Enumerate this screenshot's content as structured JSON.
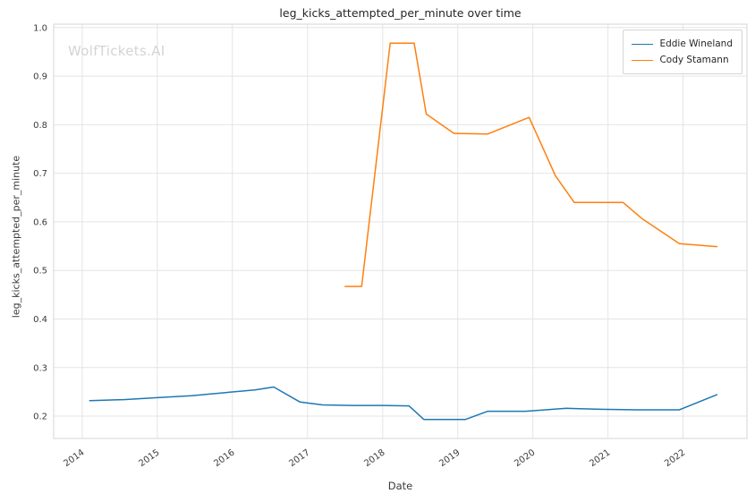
{
  "watermark": {
    "text": "WolfTickets.AI",
    "color": "#d4d4d4"
  },
  "chart_data": {
    "type": "line",
    "title": "leg_kicks_attempted_per_minute over time",
    "xlabel": "Date",
    "ylabel": "leg_kicks_attempted_per_minute",
    "grid": true,
    "legend_position": "upper right",
    "grid_color": "#e4e4e4",
    "spine_color": "#d5d5d5",
    "xlim": [
      2013.62,
      2022.85
    ],
    "ylim": [
      0.154,
      1.007
    ],
    "x_ticks": [
      2014,
      2015,
      2016,
      2017,
      2018,
      2019,
      2020,
      2021,
      2022
    ],
    "x_tick_labels": [
      "2014",
      "2015",
      "2016",
      "2017",
      "2018",
      "2019",
      "2020",
      "2021",
      "2022"
    ],
    "y_ticks": [
      0.2,
      0.3,
      0.4,
      0.5,
      0.6,
      0.7,
      0.8,
      0.9,
      1.0
    ],
    "y_tick_labels": [
      "0.2",
      "0.3",
      "0.4",
      "0.5",
      "0.6",
      "0.7",
      "0.8",
      "0.9",
      "1.0"
    ],
    "series": [
      {
        "name": "Eddie Wineland",
        "color": "#1f77b4",
        "points": [
          [
            2014.1,
            0.232
          ],
          [
            2014.55,
            0.234
          ],
          [
            2015.0,
            0.238
          ],
          [
            2015.45,
            0.242
          ],
          [
            2015.95,
            0.249
          ],
          [
            2016.3,
            0.254
          ],
          [
            2016.55,
            0.26
          ],
          [
            2016.9,
            0.229
          ],
          [
            2017.2,
            0.223
          ],
          [
            2017.6,
            0.222
          ],
          [
            2018.0,
            0.222
          ],
          [
            2018.35,
            0.221
          ],
          [
            2018.55,
            0.193
          ],
          [
            2019.1,
            0.193
          ],
          [
            2019.4,
            0.21
          ],
          [
            2019.9,
            0.21
          ],
          [
            2020.45,
            0.216
          ],
          [
            2020.9,
            0.214
          ],
          [
            2021.4,
            0.213
          ],
          [
            2021.95,
            0.213
          ],
          [
            2022.45,
            0.244
          ]
        ]
      },
      {
        "name": "Cody Stamann",
        "color": "#ff7f0e",
        "points": [
          [
            2017.5,
            0.467
          ],
          [
            2017.72,
            0.467
          ],
          [
            2018.1,
            0.968
          ],
          [
            2018.42,
            0.968
          ],
          [
            2018.58,
            0.822
          ],
          [
            2018.95,
            0.782
          ],
          [
            2019.4,
            0.781
          ],
          [
            2019.95,
            0.815
          ],
          [
            2020.3,
            0.695
          ],
          [
            2020.55,
            0.64
          ],
          [
            2021.2,
            0.64
          ],
          [
            2021.45,
            0.607
          ],
          [
            2021.95,
            0.555
          ],
          [
            2022.45,
            0.549
          ]
        ]
      }
    ]
  }
}
